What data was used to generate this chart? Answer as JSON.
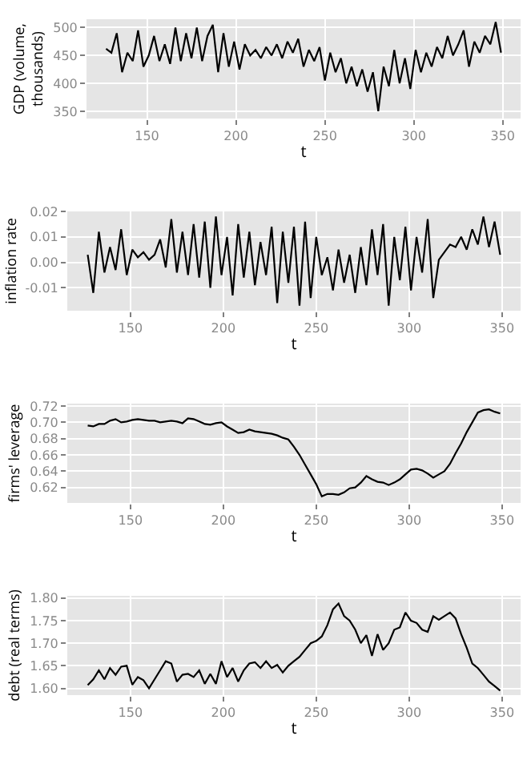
{
  "chart_data": [
    {
      "type": "line",
      "xlabel": "t",
      "ylabel": "GDP (volume, thousands)",
      "color": "#000000",
      "grid": true,
      "x": [
        127,
        130,
        133,
        136,
        139,
        142,
        145,
        148,
        151,
        154,
        157,
        160,
        163,
        166,
        169,
        172,
        175,
        178,
        181,
        184,
        187,
        190,
        193,
        196,
        199,
        202,
        205,
        208,
        211,
        214,
        217,
        220,
        223,
        226,
        229,
        232,
        235,
        238,
        241,
        244,
        247,
        250,
        253,
        256,
        259,
        262,
        265,
        268,
        271,
        274,
        277,
        280,
        283,
        286,
        289,
        292,
        295,
        298,
        301,
        304,
        307,
        310,
        313,
        316,
        319,
        322,
        325,
        328,
        331,
        334,
        337,
        340,
        343,
        346,
        349
      ],
      "values": [
        462,
        455,
        490,
        420,
        455,
        440,
        495,
        430,
        450,
        485,
        440,
        470,
        435,
        500,
        440,
        490,
        445,
        500,
        440,
        485,
        505,
        420,
        490,
        430,
        475,
        425,
        470,
        450,
        460,
        445,
        465,
        450,
        470,
        445,
        475,
        455,
        480,
        430,
        460,
        440,
        465,
        405,
        455,
        420,
        445,
        400,
        430,
        395,
        425,
        385,
        420,
        350,
        430,
        395,
        460,
        400,
        445,
        390,
        460,
        420,
        455,
        430,
        465,
        445,
        485,
        450,
        470,
        495,
        430,
        475,
        455,
        485,
        470,
        510,
        455
      ],
      "xlim": [
        116,
        360
      ],
      "xticks": [
        150,
        200,
        250,
        300,
        350
      ],
      "ylim": [
        337,
        515
      ],
      "yticks": [
        350,
        400,
        450,
        500
      ]
    },
    {
      "type": "line",
      "xlabel": "t",
      "ylabel": "inflation rate",
      "color": "#000000",
      "grid": true,
      "x": [
        127,
        130,
        133,
        136,
        139,
        142,
        145,
        148,
        151,
        154,
        157,
        160,
        163,
        166,
        169,
        172,
        175,
        178,
        181,
        184,
        187,
        190,
        193,
        196,
        199,
        202,
        205,
        208,
        211,
        214,
        217,
        220,
        223,
        226,
        229,
        232,
        235,
        238,
        241,
        244,
        247,
        250,
        253,
        256,
        259,
        262,
        265,
        268,
        271,
        274,
        277,
        280,
        283,
        286,
        289,
        292,
        295,
        298,
        301,
        304,
        307,
        310,
        313,
        316,
        319,
        322,
        325,
        328,
        331,
        334,
        337,
        340,
        343,
        346,
        349
      ],
      "values": [
        0.003,
        -0.012,
        0.012,
        -0.004,
        0.006,
        -0.003,
        0.013,
        -0.005,
        0.005,
        0.002,
        0.004,
        0.001,
        0.003,
        0.009,
        -0.002,
        0.017,
        -0.004,
        0.012,
        -0.005,
        0.015,
        -0.006,
        0.016,
        -0.01,
        0.018,
        -0.005,
        0.01,
        -0.013,
        0.015,
        -0.006,
        0.012,
        -0.009,
        0.008,
        -0.005,
        0.014,
        -0.016,
        0.012,
        -0.008,
        0.014,
        -0.017,
        0.016,
        -0.014,
        0.01,
        -0.005,
        0.002,
        -0.011,
        0.005,
        -0.008,
        0.003,
        -0.012,
        0.006,
        -0.009,
        0.013,
        -0.005,
        0.015,
        -0.017,
        0.01,
        -0.007,
        0.014,
        -0.011,
        0.01,
        -0.004,
        0.017,
        -0.014,
        0.001,
        0.004,
        0.007,
        0.006,
        0.01,
        0.005,
        0.013,
        0.007,
        0.018,
        0.006,
        0.016,
        0.003
      ],
      "xlim": [
        116,
        360
      ],
      "xticks": [
        150,
        200,
        250,
        300,
        350
      ],
      "ylim": [
        -0.019,
        0.02
      ],
      "yticks": [
        -0.01,
        {
          "value": 0,
          "label": "0.00"
        },
        0.01,
        0.02
      ]
    },
    {
      "type": "line",
      "xlabel": "t",
      "ylabel": "firms' leverage",
      "color": "#000000",
      "grid": true,
      "x": [
        127,
        130,
        133,
        136,
        139,
        142,
        145,
        148,
        151,
        154,
        157,
        160,
        163,
        166,
        169,
        172,
        175,
        178,
        181,
        184,
        187,
        190,
        193,
        196,
        199,
        202,
        205,
        208,
        211,
        214,
        217,
        220,
        223,
        226,
        229,
        232,
        235,
        238,
        241,
        244,
        247,
        250,
        253,
        256,
        259,
        262,
        265,
        268,
        271,
        274,
        277,
        280,
        283,
        286,
        289,
        292,
        295,
        298,
        301,
        304,
        307,
        310,
        313,
        316,
        319,
        322,
        325,
        328,
        331,
        334,
        337,
        340,
        343,
        346,
        349
      ],
      "values": [
        0.696,
        0.695,
        0.698,
        0.698,
        0.702,
        0.704,
        0.7,
        0.701,
        0.703,
        0.704,
        0.703,
        0.702,
        0.702,
        0.7,
        0.701,
        0.702,
        0.701,
        0.699,
        0.705,
        0.704,
        0.701,
        0.698,
        0.697,
        0.699,
        0.7,
        0.695,
        0.691,
        0.687,
        0.688,
        0.691,
        0.689,
        0.688,
        0.687,
        0.686,
        0.684,
        0.681,
        0.679,
        0.67,
        0.66,
        0.648,
        0.636,
        0.624,
        0.609,
        0.612,
        0.612,
        0.611,
        0.614,
        0.619,
        0.62,
        0.626,
        0.634,
        0.63,
        0.627,
        0.626,
        0.623,
        0.626,
        0.63,
        0.636,
        0.642,
        0.643,
        0.641,
        0.637,
        0.632,
        0.636,
        0.64,
        0.649,
        0.662,
        0.674,
        0.688,
        0.7,
        0.712,
        0.715,
        0.716,
        0.713,
        0.711
      ],
      "xlim": [
        116,
        360
      ],
      "xticks": [
        150,
        200,
        250,
        300,
        350
      ],
      "ylim": [
        0.601,
        0.723
      ],
      "yticks": [
        0.62,
        0.64,
        0.66,
        0.68,
        {
          "value": 0.7,
          "label": "0.70"
        },
        0.72
      ]
    },
    {
      "type": "line",
      "xlabel": "t",
      "ylabel": "debt (real terms)",
      "color": "#000000",
      "grid": true,
      "x": [
        127,
        130,
        133,
        136,
        139,
        142,
        145,
        148,
        151,
        154,
        157,
        160,
        163,
        166,
        169,
        172,
        175,
        178,
        181,
        184,
        187,
        190,
        193,
        196,
        199,
        202,
        205,
        208,
        211,
        214,
        217,
        220,
        223,
        226,
        229,
        232,
        235,
        238,
        241,
        244,
        247,
        250,
        253,
        256,
        259,
        262,
        265,
        268,
        271,
        274,
        277,
        280,
        283,
        286,
        289,
        292,
        295,
        298,
        301,
        304,
        307,
        310,
        313,
        316,
        319,
        322,
        325,
        328,
        331,
        334,
        337,
        340,
        343,
        346,
        349
      ],
      "values": [
        1.607,
        1.62,
        1.64,
        1.62,
        1.645,
        1.63,
        1.648,
        1.65,
        1.608,
        1.625,
        1.618,
        1.6,
        1.62,
        1.64,
        1.66,
        1.655,
        1.615,
        1.63,
        1.632,
        1.625,
        1.64,
        1.61,
        1.632,
        1.61,
        1.66,
        1.625,
        1.645,
        1.615,
        1.64,
        1.655,
        1.658,
        1.645,
        1.66,
        1.645,
        1.652,
        1.635,
        1.65,
        1.66,
        1.67,
        1.685,
        1.7,
        1.705,
        1.715,
        1.74,
        1.775,
        1.788,
        1.76,
        1.75,
        1.73,
        1.7,
        1.718,
        1.672,
        1.72,
        1.685,
        1.7,
        1.73,
        1.735,
        1.768,
        1.75,
        1.745,
        1.73,
        1.725,
        1.76,
        1.752,
        1.76,
        1.768,
        1.755,
        1.72,
        1.69,
        1.655,
        1.645,
        1.63,
        1.615,
        1.605,
        1.595
      ],
      "xlim": [
        116,
        360
      ],
      "xticks": [
        150,
        200,
        250,
        300,
        350
      ],
      "ylim": [
        1.585,
        1.805
      ],
      "yticks": [
        {
          "value": 1.6,
          "label": "1.60"
        },
        1.65,
        {
          "value": 1.7,
          "label": "1.70"
        },
        1.75,
        {
          "value": 1.8,
          "label": "1.80"
        }
      ]
    }
  ]
}
